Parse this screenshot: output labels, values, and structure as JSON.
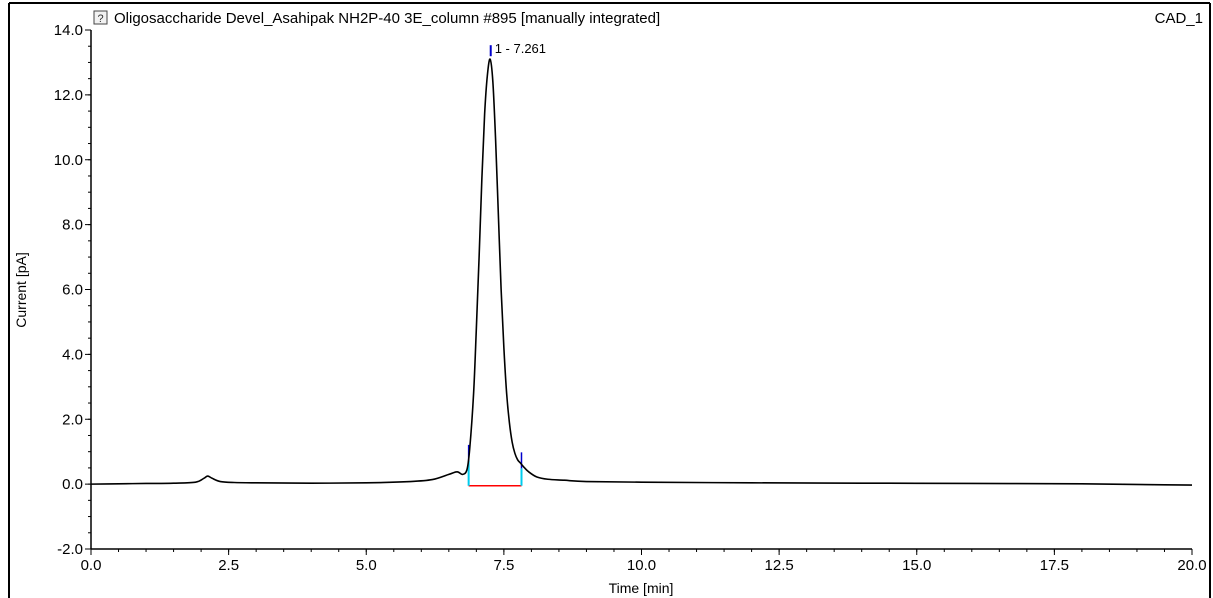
{
  "header": {
    "title": "Oligosaccharide Devel_Asahipak NH2P-40 3E_column #895 [manually integrated]",
    "channel": "CAD_1",
    "icon": "question-mark-icon"
  },
  "chart_data": {
    "type": "line",
    "xlabel": "Time [min]",
    "ylabel": "Current [pA]",
    "xlim": [
      0,
      20
    ],
    "ylim": [
      -2,
      14
    ],
    "x_ticks": [
      "0.0",
      "2.5",
      "5.0",
      "7.5",
      "10.0",
      "12.5",
      "15.0",
      "17.5",
      "20.0"
    ],
    "y_ticks": [
      "-2.0",
      "0.0",
      "2.0",
      "4.0",
      "6.0",
      "8.0",
      "10.0",
      "12.0",
      "14.0"
    ],
    "grid": false,
    "series": [
      {
        "color": "#000000",
        "x": [
          0.0,
          0.5,
          1.0,
          1.5,
          1.9,
          2.05,
          2.12,
          2.2,
          2.35,
          2.6,
          3.0,
          4.0,
          5.0,
          5.8,
          6.2,
          6.5,
          6.65,
          6.75,
          6.83,
          6.88,
          6.95,
          7.0,
          7.05,
          7.1,
          7.15,
          7.2,
          7.25,
          7.3,
          7.35,
          7.4,
          7.45,
          7.5,
          7.55,
          7.6,
          7.65,
          7.7,
          7.75,
          7.8,
          7.85,
          7.95,
          8.1,
          8.3,
          8.6,
          9.0,
          10.0,
          12.0,
          14.0,
          16.0,
          18.0,
          19.5,
          20.0
        ],
        "y": [
          0.0,
          0.01,
          0.02,
          0.03,
          0.06,
          0.18,
          0.25,
          0.18,
          0.08,
          0.05,
          0.04,
          0.03,
          0.04,
          0.08,
          0.14,
          0.3,
          0.38,
          0.3,
          0.45,
          1.1,
          2.8,
          4.8,
          7.0,
          9.4,
          11.4,
          12.6,
          13.1,
          12.4,
          10.6,
          8.3,
          6.0,
          4.2,
          2.8,
          1.9,
          1.3,
          0.95,
          0.75,
          0.65,
          0.55,
          0.38,
          0.22,
          0.15,
          0.12,
          0.08,
          0.06,
          0.04,
          0.03,
          0.02,
          0.01,
          -0.02,
          -0.03
        ]
      }
    ],
    "peaks": [
      {
        "label": "1 - 7.261",
        "retention_time": 7.261,
        "height": 13.1,
        "start": 6.86,
        "end": 7.82
      }
    ],
    "integration_baseline_color": "#ff0000",
    "peak_delimiter_color": "#00ccee",
    "peak_marker_color": "#0000cc"
  }
}
